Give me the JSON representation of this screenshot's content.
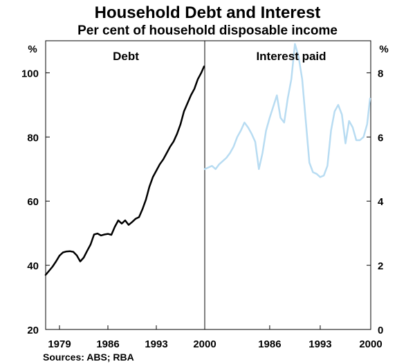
{
  "title": "Household Debt and Interest",
  "subtitle": "Per cent of household disposable income",
  "source": "Sources: ABS; RBA",
  "chart_data": [
    {
      "type": "line",
      "panel_label": "Debt",
      "yunit": "%",
      "ylim": [
        20,
        110
      ],
      "yticks": [
        20,
        40,
        60,
        80,
        100
      ],
      "xlim": [
        1977.0,
        2000.0
      ],
      "xticks": [
        1979,
        1986,
        1993,
        2000
      ],
      "grid": false,
      "color": "#000000",
      "series": [
        {
          "x": [
            1977.0,
            1977.5,
            1978.0,
            1978.5,
            1979.0,
            1979.5,
            1980.0,
            1980.5,
            1981.0,
            1981.5,
            1982.0,
            1982.5,
            1983.0,
            1983.5,
            1984.0,
            1984.5,
            1985.0,
            1985.5,
            1986.0,
            1986.5,
            1987.0,
            1987.5,
            1988.0,
            1988.5,
            1989.0,
            1989.5,
            1990.0,
            1990.5,
            1991.0,
            1991.5,
            1992.0,
            1992.5,
            1993.0,
            1993.5,
            1994.0,
            1994.5,
            1995.0,
            1995.5,
            1996.0,
            1996.5,
            1997.0,
            1997.5,
            1998.0,
            1998.5,
            1999.0,
            1999.5,
            1999.9
          ],
          "y": [
            37.0,
            38.3,
            39.6,
            41.2,
            43.0,
            44.0,
            44.3,
            44.4,
            44.2,
            43.1,
            41.2,
            42.4,
            44.5,
            46.5,
            49.6,
            49.9,
            49.3,
            49.6,
            49.8,
            49.5,
            52.0,
            54.0,
            53.0,
            54.0,
            52.6,
            53.5,
            54.5,
            55.0,
            57.5,
            60.5,
            64.5,
            67.5,
            69.5,
            71.5,
            73.0,
            75.0,
            77.0,
            78.6,
            81.0,
            84.0,
            88.0,
            90.5,
            93.0,
            95.0,
            98.0,
            100.0,
            102.0
          ]
        }
      ]
    },
    {
      "type": "line",
      "panel_label": "Interest paid",
      "yunit": "%",
      "ylim": [
        0,
        9
      ],
      "yticks": [
        0,
        2,
        4,
        6,
        8
      ],
      "xlim": [
        1977.0,
        2000.0
      ],
      "xticks": [
        1986,
        1993,
        2000
      ],
      "grid": false,
      "color": "#b8dcf2",
      "series": [
        {
          "x": [
            1977.0,
            1977.5,
            1978.0,
            1978.5,
            1979.0,
            1979.5,
            1980.0,
            1980.5,
            1981.0,
            1981.5,
            1982.0,
            1982.5,
            1983.0,
            1983.5,
            1984.0,
            1984.5,
            1985.0,
            1985.5,
            1986.0,
            1986.5,
            1987.0,
            1987.5,
            1988.0,
            1988.5,
            1989.0,
            1989.5,
            1990.0,
            1990.5,
            1991.0,
            1991.5,
            1992.0,
            1992.5,
            1993.0,
            1993.5,
            1994.0,
            1994.5,
            1995.0,
            1995.5,
            1996.0,
            1996.5,
            1997.0,
            1997.5,
            1998.0,
            1998.5,
            1999.0,
            1999.5,
            1999.9
          ],
          "y": [
            5.0,
            5.05,
            5.1,
            5.0,
            5.15,
            5.25,
            5.35,
            5.5,
            5.7,
            6.0,
            6.2,
            6.45,
            6.3,
            6.1,
            5.85,
            5.0,
            5.5,
            6.2,
            6.6,
            6.95,
            7.3,
            6.6,
            6.45,
            7.2,
            7.8,
            8.9,
            8.5,
            7.8,
            6.5,
            5.2,
            4.9,
            4.85,
            4.75,
            4.8,
            5.1,
            6.2,
            6.8,
            7.0,
            6.7,
            5.8,
            6.5,
            6.3,
            5.9,
            5.9,
            6.0,
            6.4,
            7.2
          ]
        }
      ]
    }
  ]
}
